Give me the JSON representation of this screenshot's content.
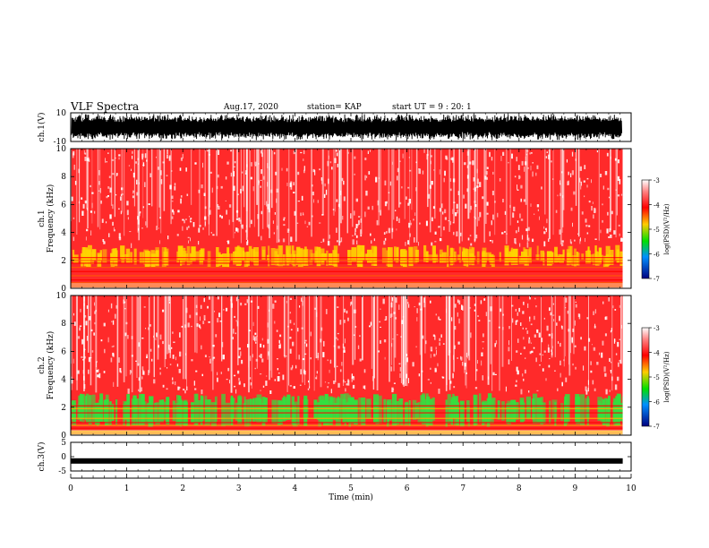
{
  "header": {
    "title": "VLF Spectra",
    "date": "Aug.17, 2020",
    "station": "station= KAP",
    "start": "start UT = 9 : 20: 1"
  },
  "chart_data": [
    {
      "type": "line",
      "name": "ch1-waveform",
      "ylabel": "ch.1(V)",
      "ylim": [
        -10,
        10
      ],
      "yticks": [
        "10",
        "-10"
      ],
      "xlim": [
        0,
        10
      ],
      "note": "dense oscillating waveform filling most of the range"
    },
    {
      "type": "heatmap",
      "name": "ch1-spectrogram",
      "ylabel": "ch.1 Frequency (kHz)",
      "ylim": [
        0,
        10
      ],
      "yticks": [
        "0",
        "2",
        "4",
        "6",
        "8",
        "10"
      ],
      "xlim": [
        0,
        9.85
      ],
      "colorbar": {
        "label": "log(PSD)(V²/Hz)",
        "range": [
          -7,
          -3
        ],
        "ticks": [
          "-3",
          "-4",
          "-5",
          "-6",
          "-7"
        ]
      },
      "colors": {
        "background": "#ff2a2a",
        "band": "#ffd400",
        "low": "#ff5a00"
      }
    },
    {
      "type": "heatmap",
      "name": "ch2-spectrogram",
      "ylabel": "ch.2 Frequency (kHz)",
      "ylim": [
        0,
        10
      ],
      "yticks": [
        "0",
        "2",
        "4",
        "6",
        "8",
        "10"
      ],
      "xlim": [
        0,
        9.85
      ],
      "colorbar": {
        "label": "log(PSD)(V²/Hz)",
        "range": [
          -7,
          -3
        ],
        "ticks": [
          "-3",
          "-4",
          "-5",
          "-6",
          "-7"
        ]
      },
      "colors": {
        "background": "#ff2a2a",
        "band": "#33e040",
        "low": "#ffb000"
      }
    },
    {
      "type": "line",
      "name": "ch3-waveform",
      "ylabel": "ch.3(V)",
      "ylim": [
        -5,
        5
      ],
      "yticks": [
        "5",
        "0",
        "-5"
      ],
      "xlim": [
        0,
        10
      ],
      "level": -1.5,
      "note": "flat thick trace near -1.5 V"
    }
  ],
  "x_axis": {
    "label": "Time (min)",
    "ticks": [
      "0",
      "1",
      "2",
      "3",
      "4",
      "5",
      "6",
      "7",
      "8",
      "9",
      "10"
    ]
  }
}
